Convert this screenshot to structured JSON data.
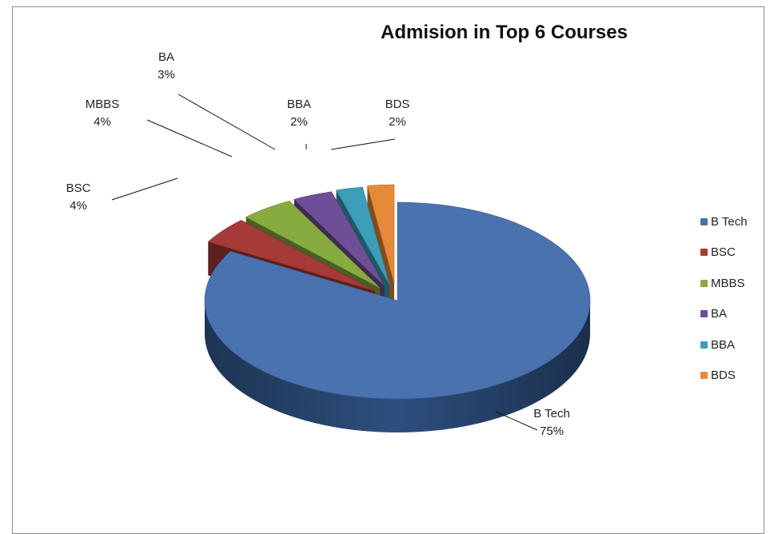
{
  "chart_data": {
    "type": "pie",
    "title": "Admision in Top 6 Courses",
    "legend_position": "right",
    "exploded": true,
    "three_d": true,
    "slices": [
      {
        "label": "B Tech",
        "value": 75,
        "display": "75%",
        "color": "#4a72ae"
      },
      {
        "label": "BSC",
        "value": 4,
        "display": "4%",
        "color": "#a63a38"
      },
      {
        "label": "MBBS",
        "value": 4,
        "display": "4%",
        "color": "#88ab40"
      },
      {
        "label": "BA",
        "value": 3,
        "display": "3%",
        "color": "#6e4f97"
      },
      {
        "label": "BBA",
        "value": 2,
        "display": "2%",
        "color": "#3c9eb8"
      },
      {
        "label": "BDS",
        "value": 2,
        "display": "2%",
        "color": "#e58a38"
      }
    ]
  }
}
